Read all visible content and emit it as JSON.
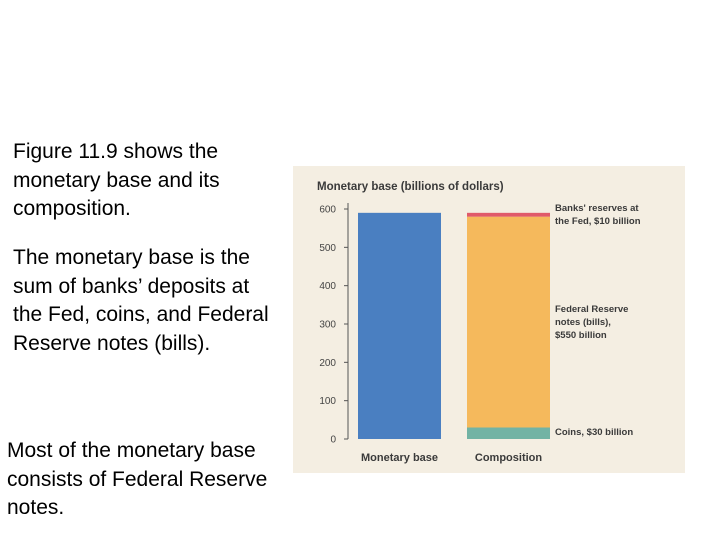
{
  "text": {
    "paragraph_1": "Figure 11.9  shows the monetary base and its composition.",
    "paragraph_2": "The monetary base is the sum of banks’ deposits at the Fed, coins, and Federal Reserve notes (bills).",
    "paragraph_3": "Most of the monetary base consists of Federal Reserve notes."
  },
  "chart_data": {
    "type": "bar",
    "title": "Monetary base (billions of dollars)",
    "categories": [
      "Monetary base",
      "Composition"
    ],
    "ylim": [
      0,
      600
    ],
    "yticks": [
      0,
      100,
      200,
      300,
      400,
      500,
      600
    ],
    "grid": false,
    "monetary_base": {
      "value": 590,
      "color": "#4a7fc1"
    },
    "composition": [
      {
        "name": "Coins",
        "value": 30,
        "color": "#72b3a4",
        "label": "Coins, $30 billion"
      },
      {
        "name": "Federal Reserve notes",
        "value": 550,
        "color": "#f5b95c",
        "label": "Federal Reserve notes (bills), $550 billion"
      },
      {
        "name": "Banks' reserves at the Fed",
        "value": 10,
        "color": "#e05a6a",
        "label": "Banks' reserves at the Fed, $10 billion"
      }
    ]
  }
}
